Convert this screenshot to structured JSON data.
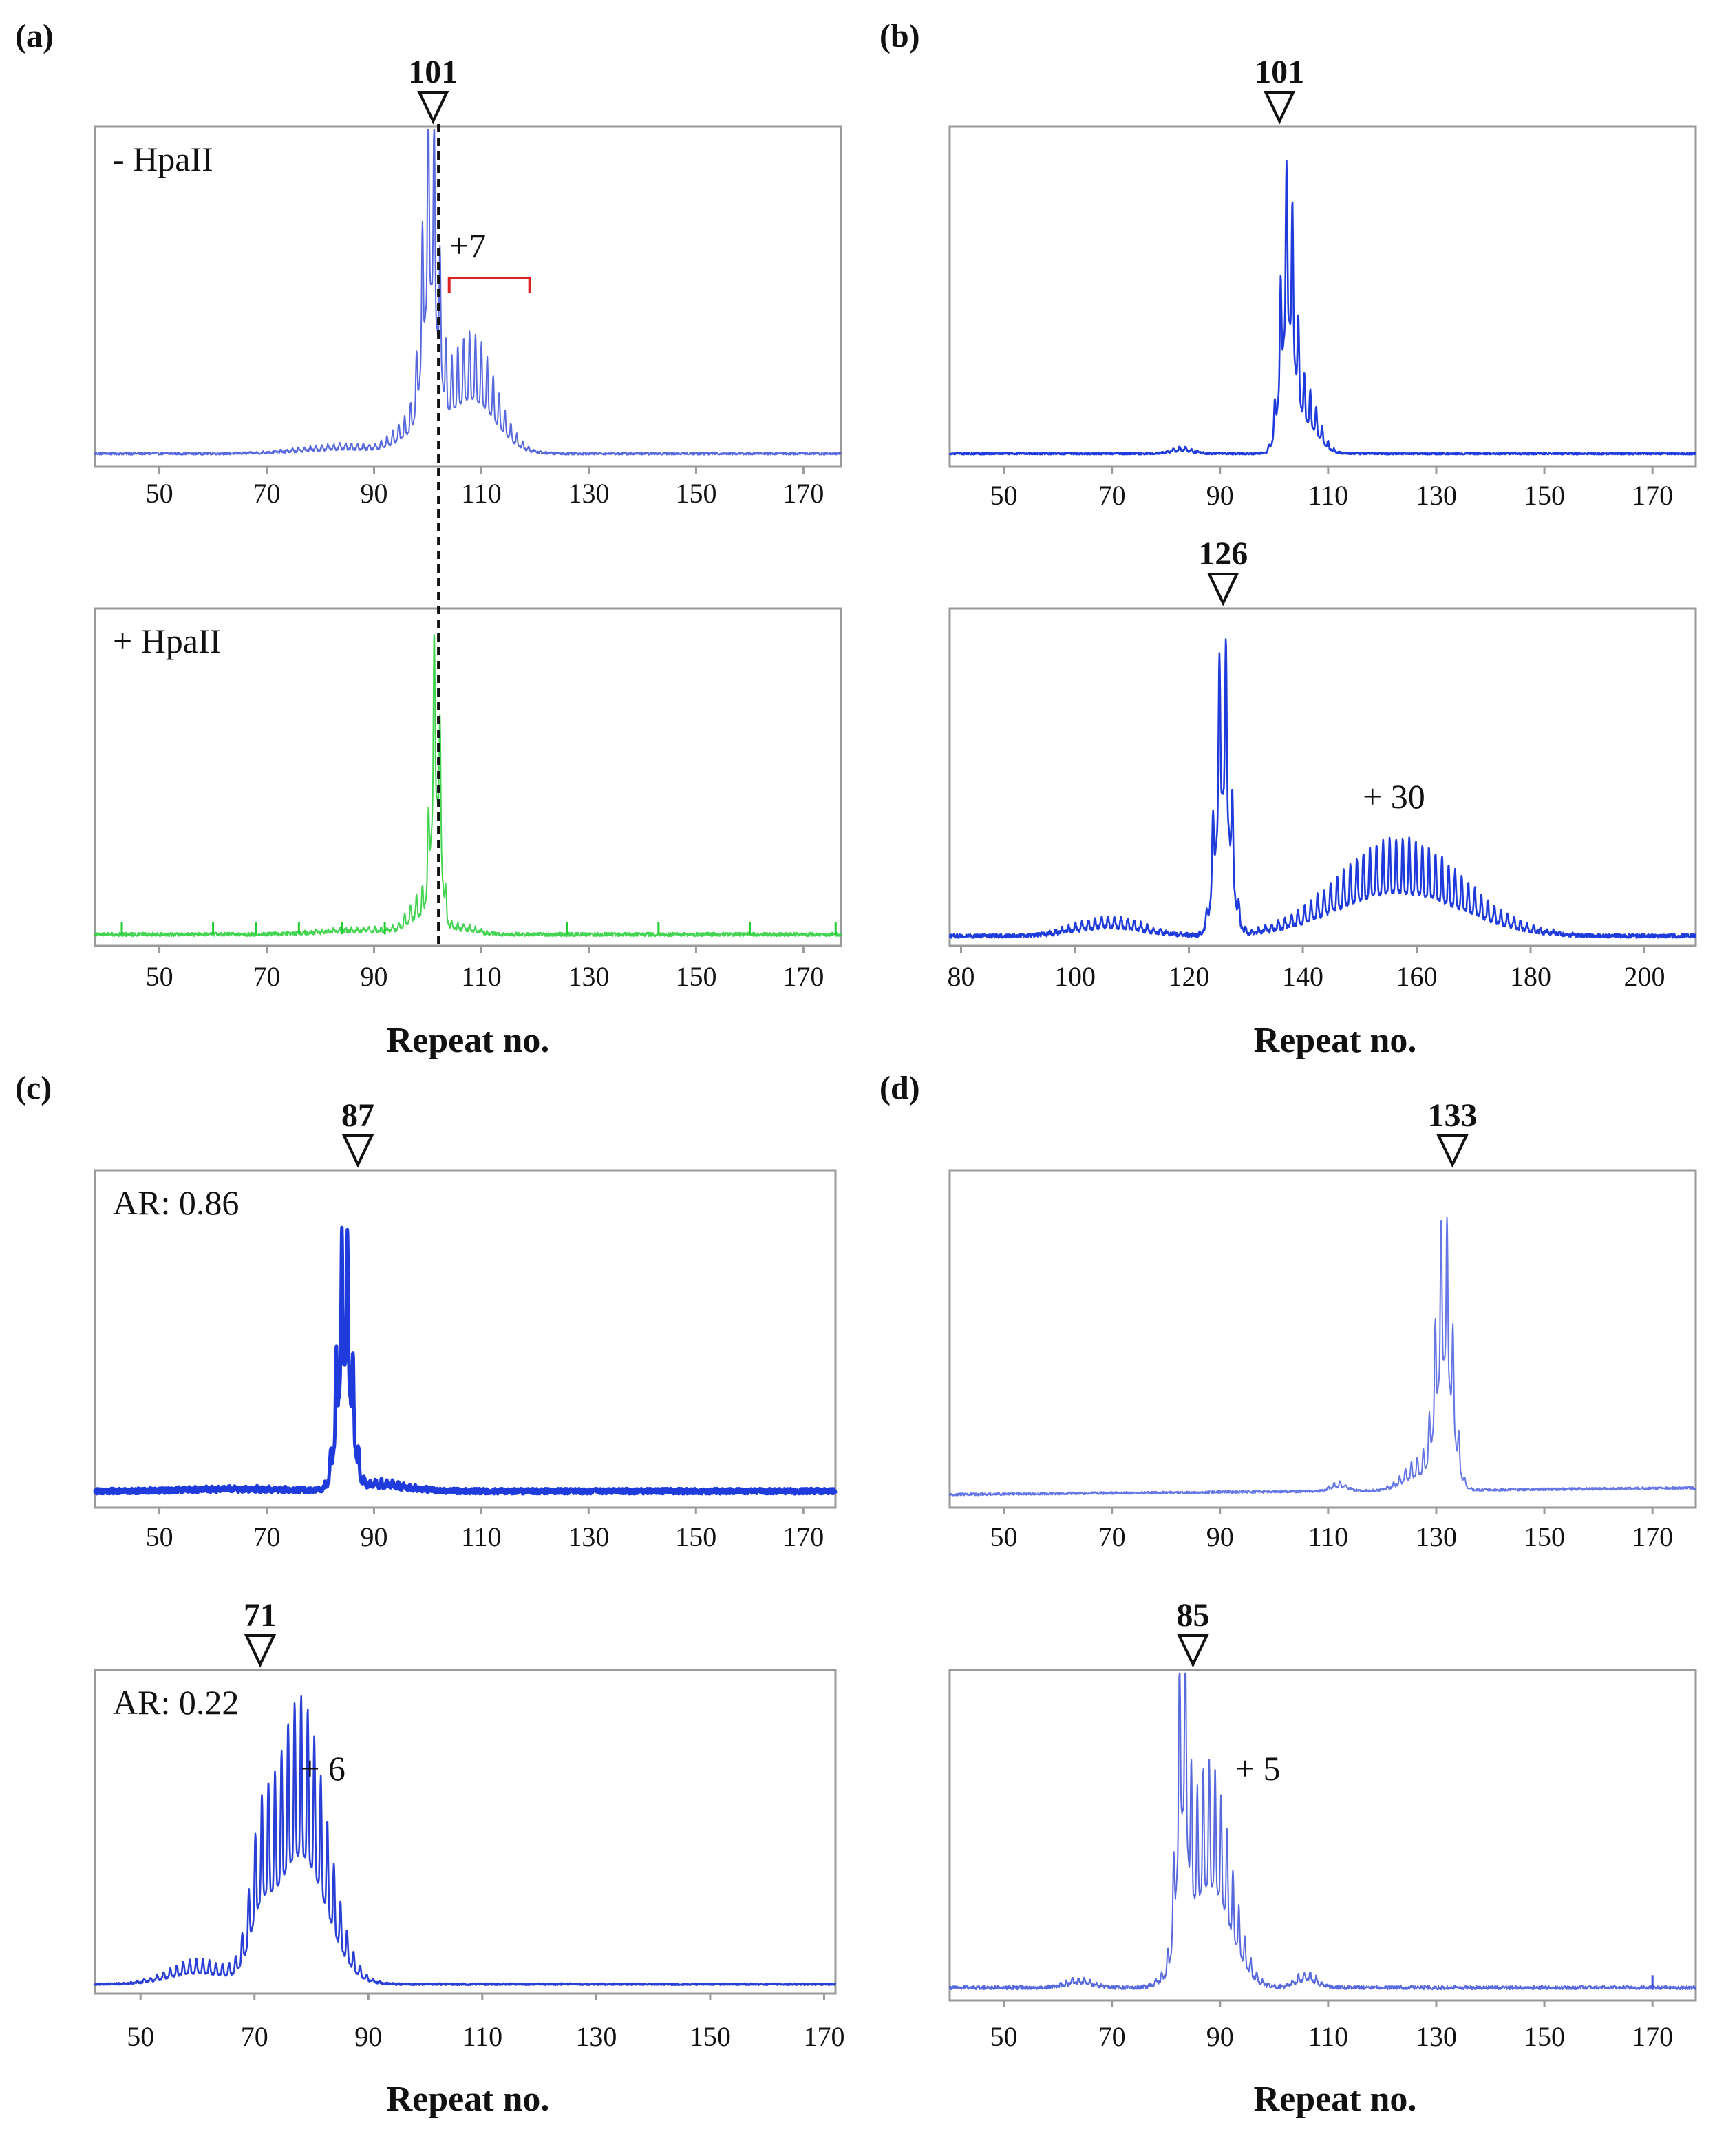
{
  "figure": {
    "repeat_label": "Repeat no.",
    "colors": {
      "blue": "#2a3fd6",
      "green": "#22cc33",
      "frame": "#9a9a9a",
      "bracket": "#dd2222",
      "text": "#111111"
    },
    "panels": [
      {
        "id": "a",
        "letter": "(a)"
      },
      {
        "id": "b",
        "letter": "(b)"
      },
      {
        "id": "c",
        "letter": "(c)"
      },
      {
        "id": "d",
        "letter": "(d)"
      }
    ]
  },
  "chart_data": [
    {
      "id": "a1",
      "panel": "(a)",
      "type": "line",
      "xlim": [
        38,
        177
      ],
      "ticks": [
        50,
        70,
        90,
        110,
        130,
        150,
        170
      ],
      "color": "#3b4fd8",
      "intensity": "light",
      "label": "- HpaII",
      "marker": {
        "value": 101,
        "text": "101"
      },
      "annotation": {
        "text": "+7",
        "at": 110
      },
      "bracket": [
        104,
        119
      ],
      "xlabel": "",
      "ylabel": "",
      "baseline": 0.04,
      "noise": 0.004,
      "period": 1.1,
      "peaks": [
        {
          "x": 100.5,
          "h": 1.0,
          "w": 1.4
        },
        {
          "x": 108,
          "h": 0.37,
          "w": 4.5
        },
        {
          "x": 97,
          "h": 0.1,
          "w": 3
        },
        {
          "x": 85,
          "h": 0.03,
          "w": 8
        }
      ]
    },
    {
      "id": "a2",
      "panel": "(a)",
      "type": "line",
      "xlim": [
        38,
        177
      ],
      "ticks": [
        50,
        70,
        90,
        110,
        130,
        150,
        170
      ],
      "color": "#22cc33",
      "intensity": "light",
      "label": "+ HpaII",
      "xlabel": "Repeat no.",
      "ylabel": "",
      "baseline": 0.035,
      "noise": 0.006,
      "period": 1.1,
      "peaks": [
        {
          "x": 101.5,
          "h": 0.88,
          "w": 0.9
        },
        {
          "x": 99,
          "h": 0.12,
          "w": 2.5
        },
        {
          "x": 106,
          "h": 0.03,
          "w": 3
        },
        {
          "x": 88,
          "h": 0.02,
          "w": 8
        }
      ],
      "spikes": [
        43,
        60,
        68,
        76,
        84,
        92,
        126,
        143,
        160,
        176
      ]
    },
    {
      "id": "b1",
      "panel": "(b)",
      "type": "line",
      "xlim": [
        40,
        178
      ],
      "ticks": [
        50,
        70,
        90,
        110,
        130,
        150,
        170
      ],
      "color": "#1f3bdb",
      "intensity": "solid",
      "marker": {
        "value": 101,
        "text": "101"
      },
      "xlabel": "",
      "ylabel": "",
      "baseline": 0.04,
      "noise": 0.003,
      "period": 1.1,
      "peaks": [
        {
          "x": 102.5,
          "h": 0.85,
          "w": 1.3
        },
        {
          "x": 106,
          "h": 0.2,
          "w": 2.2
        },
        {
          "x": 83,
          "h": 0.02,
          "w": 2
        }
      ]
    },
    {
      "id": "b2",
      "panel": "(b)",
      "type": "line",
      "xlim": [
        78,
        209
      ],
      "ticks": [
        80,
        100,
        120,
        140,
        160,
        180,
        200
      ],
      "color": "#1f3bdb",
      "intensity": "solid",
      "marker": {
        "value": 126,
        "text": "126"
      },
      "annotation": {
        "text": "+ 30",
        "at": 156
      },
      "xlabel": "Repeat no.",
      "ylabel": "",
      "baseline": 0.03,
      "noise": 0.006,
      "period": 1.15,
      "peaks": [
        {
          "x": 126,
          "h": 0.97,
          "w": 1.3
        },
        {
          "x": 157,
          "h": 0.3,
          "w": 11
        },
        {
          "x": 106,
          "h": 0.06,
          "w": 6
        }
      ]
    },
    {
      "id": "c1",
      "panel": "(c)",
      "type": "line",
      "xlim": [
        38,
        176
      ],
      "ticks": [
        50,
        70,
        90,
        110,
        130,
        150,
        170
      ],
      "color": "#1f3bdb",
      "intensity": "dense",
      "label": "AR: 0.86",
      "marker": {
        "value": 87,
        "text": "87"
      },
      "xlabel": "",
      "ylabel": "",
      "baseline": 0.05,
      "noise": 0.008,
      "period": 1.05,
      "peaks": [
        {
          "x": 84.5,
          "h": 0.86,
          "w": 1.3
        },
        {
          "x": 91,
          "h": 0.035,
          "w": 5
        },
        {
          "x": 65,
          "h": 0.01,
          "w": 10
        }
      ]
    },
    {
      "id": "c2",
      "panel": "(c)",
      "type": "line",
      "xlim": [
        42,
        172
      ],
      "ticks": [
        50,
        70,
        90,
        110,
        130,
        150,
        170
      ],
      "color": "#2a3fd6",
      "intensity": "solid",
      "label": "AR: 0.22",
      "marker": {
        "value": 71,
        "text": "71"
      },
      "annotation": {
        "text": "+ 6",
        "at": 82
      },
      "xlabel": "Repeat no.",
      "ylabel": "",
      "baseline": 0.03,
      "noise": 0.003,
      "period": 1.15,
      "peaks": [
        {
          "x": 78,
          "h": 0.92,
          "w": 4.5
        },
        {
          "x": 71,
          "h": 0.3,
          "w": 1.8
        },
        {
          "x": 60,
          "h": 0.08,
          "w": 5
        }
      ]
    },
    {
      "id": "d1",
      "panel": "(d)",
      "type": "line",
      "xlim": [
        40,
        178
      ],
      "ticks": [
        50,
        70,
        90,
        110,
        130,
        150,
        170
      ],
      "color": "#4a5ee0",
      "intensity": "light",
      "marker": {
        "value": 133,
        "text": "133"
      },
      "xlabel": "",
      "ylabel": "",
      "baseline": 0.04,
      "noise": 0.004,
      "period": 1.1,
      "peaks": [
        {
          "x": 131.5,
          "h": 0.86,
          "w": 1.5
        },
        {
          "x": 127,
          "h": 0.1,
          "w": 3
        },
        {
          "x": 112,
          "h": 0.03,
          "w": 1.5
        }
      ],
      "rise": 0.02
    },
    {
      "id": "d2",
      "panel": "(d)",
      "type": "line",
      "xlim": [
        40,
        178
      ],
      "ticks": [
        50,
        70,
        90,
        110,
        130,
        150,
        170
      ],
      "color": "#3b4fd8",
      "intensity": "light",
      "marker": {
        "value": 85,
        "text": "85"
      },
      "annotation": {
        "text": "+ 5",
        "at": 97
      },
      "xlabel": "Repeat no.",
      "ylabel": "",
      "baseline": 0.04,
      "noise": 0.006,
      "period": 1.1,
      "peaks": [
        {
          "x": 83,
          "h": 0.92,
          "w": 1.0
        },
        {
          "x": 88,
          "h": 0.72,
          "w": 3.8
        },
        {
          "x": 106,
          "h": 0.05,
          "w": 2
        },
        {
          "x": 64,
          "h": 0.03,
          "w": 2.5
        }
      ],
      "spikes": [
        170
      ]
    }
  ]
}
